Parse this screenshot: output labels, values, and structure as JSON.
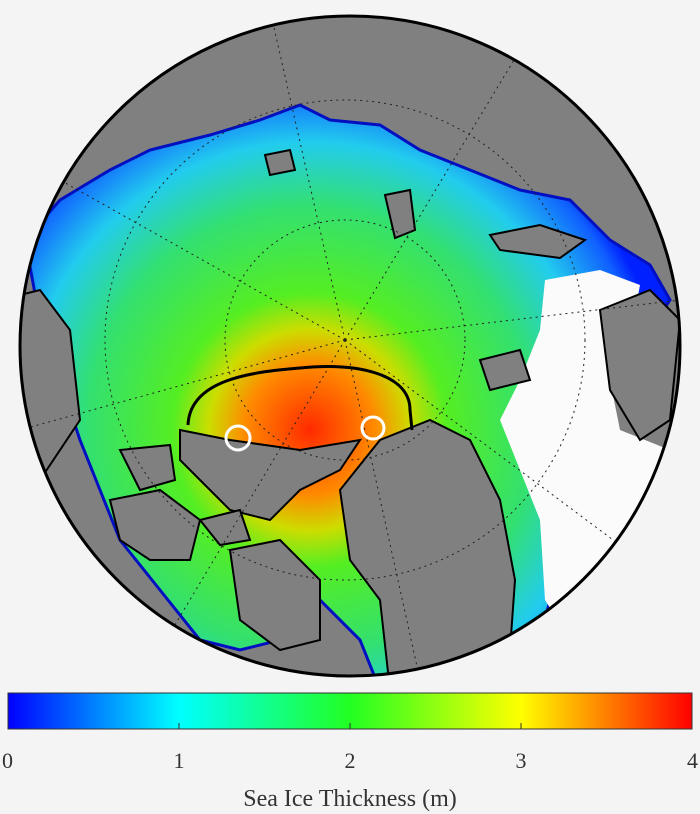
{
  "colorbar": {
    "label": "Sea Ice Thickness (m)",
    "lim": [
      0,
      4
    ],
    "ticks": [
      0,
      1,
      2,
      3,
      4
    ]
  }
}
